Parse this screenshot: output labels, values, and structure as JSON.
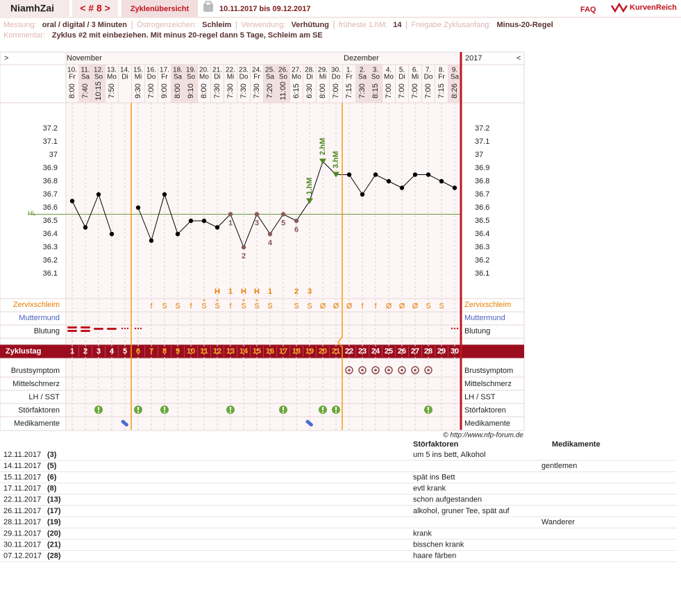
{
  "header": {
    "user": "NiamhZai",
    "cycle_nav": "< # 8 >",
    "overview": "Zyklenübersicht",
    "range": "10.11.2017 bis 09.12.2017",
    "faq": "FAQ",
    "brand": "KurvenReich"
  },
  "info": {
    "rows": [
      [
        {
          "label": "Messung:",
          "value": "oral / digital / 3 Minuten"
        },
        {
          "label": "Östrogenzeichen:",
          "value": "Schleim"
        },
        {
          "label": "Verwendung:",
          "value": "Verhütung"
        },
        {
          "label": "früheste 1.hM:",
          "value": "14"
        },
        {
          "label": "Freigabe Zyklusanfang:",
          "value": "Minus-20-Regel"
        }
      ],
      [
        {
          "label": "Kommentar:",
          "value": "Zyklus #2  mit einbeziehen. Mit minus 20-regel dann 5 Tage,  Schleim am SE"
        }
      ]
    ]
  },
  "calendar": {
    "nav_prev": ">",
    "nav_next": "<",
    "months": [
      "November",
      "Dezember"
    ],
    "year": "2017",
    "dates": [
      "10.",
      "11.",
      "12.",
      "13.",
      "14.",
      "15.",
      "16.",
      "17.",
      "18.",
      "19.",
      "20.",
      "21.",
      "22.",
      "23.",
      "24.",
      "25.",
      "26.",
      "27.",
      "28.",
      "29.",
      "30.",
      "1.",
      "2.",
      "3.",
      "4.",
      "5.",
      "6.",
      "7.",
      "8.",
      "9."
    ],
    "weekdays": [
      "Fr",
      "Sa",
      "So",
      "Mo",
      "Di",
      "Mi",
      "Do",
      "Fr",
      "Sa",
      "So",
      "Mo",
      "Di",
      "Mi",
      "Do",
      "Fr",
      "Sa",
      "So",
      "Mo",
      "Di",
      "Mi",
      "Do",
      "Fr",
      "Sa",
      "So",
      "Mo",
      "Di",
      "Mi",
      "Do",
      "Fr",
      "Sa"
    ],
    "times": [
      "8:00",
      "7:40",
      "10:15",
      "7:50",
      null,
      "9:30",
      "7:00",
      "9:00",
      "8:00",
      "9:10",
      "8:00",
      "7:30",
      "7:30",
      "7:30",
      "7:30",
      "7:20",
      "11:00",
      "6:15",
      "6:30",
      "8:00",
      "7:00",
      "7:15",
      "7:30",
      "8:15",
      "7:00",
      "7:00",
      "7:00",
      "7:00",
      "7:15",
      "8:26"
    ]
  },
  "chart_data": {
    "type": "line",
    "x": [
      1,
      2,
      3,
      4,
      5,
      6,
      7,
      8,
      9,
      10,
      11,
      12,
      13,
      14,
      15,
      16,
      17,
      18,
      19,
      20,
      21,
      22,
      23,
      24,
      25,
      26,
      27,
      28,
      29,
      30
    ],
    "values": [
      36.65,
      36.45,
      36.7,
      36.4,
      null,
      36.6,
      36.35,
      36.7,
      36.4,
      36.5,
      36.5,
      36.45,
      36.55,
      36.3,
      36.55,
      36.4,
      36.55,
      36.5,
      36.65,
      36.95,
      36.85,
      36.85,
      36.7,
      36.85,
      36.8,
      36.75,
      36.85,
      36.85,
      36.8,
      36.75
    ],
    "color": "#000000",
    "ylim": [
      35.9,
      37.4
    ],
    "yticks": [
      36.1,
      36.2,
      36.3,
      36.4,
      36.5,
      36.6,
      36.7,
      36.8,
      36.9,
      37,
      37.1,
      37.2
    ],
    "coverline": {
      "label": "HL",
      "value": 36.55,
      "color": "#6a9a3a"
    },
    "count_color": "#8b5a5a",
    "hm_color": "#4e8a1e",
    "annotations": [
      {
        "text": "1",
        "x": 13
      },
      {
        "text": "2",
        "x": 14
      },
      {
        "text": "3",
        "x": 15
      },
      {
        "text": "4",
        "x": 16
      },
      {
        "text": "5",
        "x": 17
      },
      {
        "text": "6",
        "x": 18
      }
    ],
    "hm_markers": [
      {
        "text": "1.hM",
        "x": 19
      },
      {
        "text": "2.hM",
        "x": 20
      },
      {
        "text": "3.hM",
        "x": 21
      }
    ]
  },
  "rows": {
    "zervix": "Zervixschleim",
    "muttermund": "Muttermund",
    "blutung": "Blutung",
    "zyklustag": "Zyklustag",
    "brust": "Brustsymptom",
    "mittel": "Mittelschmerz",
    "lh": "LH / SST",
    "stoer": "Störfaktoren",
    "medi": "Medikamente"
  },
  "peak_marks": [
    null,
    null,
    null,
    null,
    null,
    null,
    null,
    null,
    null,
    null,
    null,
    "H",
    "1",
    "H",
    "H",
    "1",
    null,
    "2",
    "3",
    null,
    null,
    null,
    null,
    null,
    null,
    null,
    null,
    null,
    null,
    null
  ],
  "cervix_plus": [
    null,
    null,
    null,
    null,
    null,
    null,
    null,
    null,
    null,
    null,
    "+",
    "+",
    null,
    "+",
    "+",
    null,
    null,
    null,
    null,
    null,
    null,
    null,
    null,
    null,
    null,
    null,
    null,
    null,
    null,
    null
  ],
  "cervix": [
    null,
    null,
    null,
    null,
    null,
    null,
    "f",
    "S",
    "S",
    "f",
    "S",
    "S",
    "f",
    "S",
    "S",
    "S",
    null,
    "S",
    "S",
    "Ø",
    "Ø",
    "Ø",
    "f",
    "f",
    "Ø",
    "Ø",
    "Ø",
    "S",
    "S",
    null
  ],
  "credit": "© http://www.nfp-forum.de",
  "table": {
    "headers": [
      "Störfaktoren",
      "Medikamente"
    ],
    "rows": [
      [
        "12.11.2017",
        "(3)",
        "um 5 ins bett, Alkohol",
        null
      ],
      [
        "14.11.2017",
        "(5)",
        null,
        "gentlemen"
      ],
      [
        "15.11.2017",
        "(6)",
        "spät ins Bett",
        null
      ],
      [
        "17.11.2017",
        "(8)",
        "evtl krank",
        null
      ],
      [
        "22.11.2017",
        "(13)",
        "schon aufgestanden",
        null
      ],
      [
        "26.11.2017",
        "(17)",
        "alkohol, gruner Tee, spät auf",
        null
      ],
      [
        "28.11.2017",
        "(19)",
        null,
        "Wanderer"
      ],
      [
        "29.11.2017",
        "(20)",
        "krank",
        null
      ],
      [
        "30.11.2017",
        "(21)",
        "bisschen krank",
        null
      ],
      [
        "07.12.2017",
        "(28)",
        "haare färben",
        null
      ]
    ]
  }
}
